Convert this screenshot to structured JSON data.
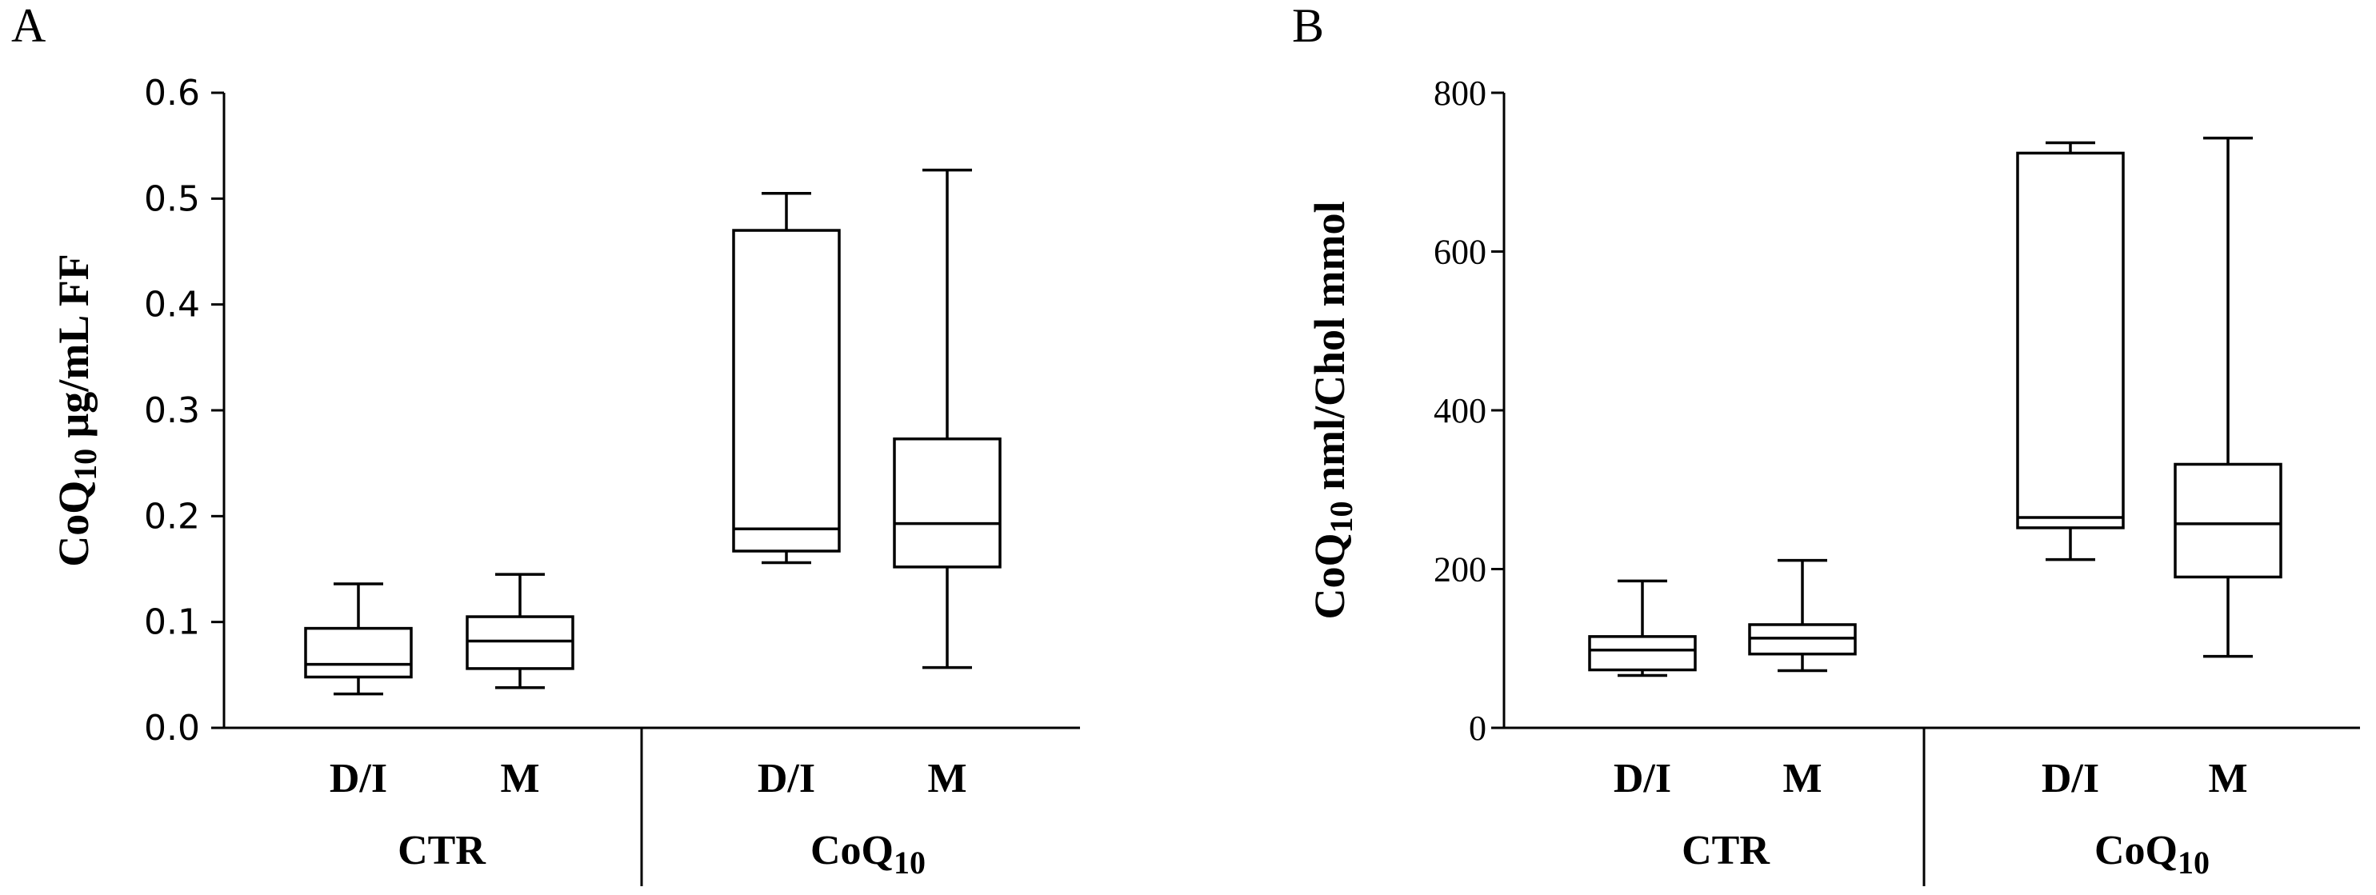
{
  "chart_data": [
    {
      "type": "boxplot",
      "panel_label": "A",
      "ylabel_main": "CoQ",
      "ylabel_sub": "10",
      "ylabel_rest": " μg/mL FF",
      "ylim": [
        0,
        0.6
      ],
      "yticks": [
        "0.0",
        "0.1",
        "0.2",
        "0.3",
        "0.4",
        "0.5",
        "0.6"
      ],
      "ytick_values": [
        0,
        0.1,
        0.2,
        0.3,
        0.4,
        0.5,
        0.6
      ],
      "categories": [
        "D/I",
        "M",
        "D/I",
        "M"
      ],
      "groups": [
        {
          "main": "CTR",
          "sub": ""
        },
        {
          "main": "CoQ",
          "sub": "10"
        }
      ],
      "boxes": [
        {
          "group": "CTR",
          "name": "D/I",
          "min": 0.032,
          "q1": 0.048,
          "median": 0.06,
          "q3": 0.094,
          "max": 0.136
        },
        {
          "group": "CTR",
          "name": "M",
          "min": 0.038,
          "q1": 0.056,
          "median": 0.082,
          "q3": 0.105,
          "max": 0.145
        },
        {
          "group": "CoQ10",
          "name": "D/I",
          "min": 0.156,
          "q1": 0.167,
          "median": 0.188,
          "q3": 0.47,
          "max": 0.505
        },
        {
          "group": "CoQ10",
          "name": "M",
          "min": 0.057,
          "q1": 0.152,
          "median": 0.193,
          "q3": 0.273,
          "max": 0.527
        }
      ]
    },
    {
      "type": "boxplot",
      "panel_label": "B",
      "ylabel_main": "CoQ",
      "ylabel_sub": "10",
      "ylabel_rest": " nml/Chol mmol",
      "ylim": [
        0,
        800
      ],
      "yticks": [
        "0",
        "200",
        "400",
        "600",
        "800"
      ],
      "ytick_values": [
        0,
        200,
        400,
        600,
        800
      ],
      "categories": [
        "D/I",
        "M",
        "D/I",
        "M"
      ],
      "groups": [
        {
          "main": "CTR",
          "sub": ""
        },
        {
          "main": "CoQ",
          "sub": "10"
        }
      ],
      "boxes": [
        {
          "group": "CTR",
          "name": "D/I",
          "min": 66,
          "q1": 73,
          "median": 98,
          "q3": 115,
          "max": 185
        },
        {
          "group": "CTR",
          "name": "M",
          "min": 72,
          "q1": 93,
          "median": 113,
          "q3": 130,
          "max": 211
        },
        {
          "group": "CoQ10",
          "name": "D/I",
          "min": 212,
          "q1": 252,
          "median": 265,
          "q3": 724,
          "max": 737
        },
        {
          "group": "CoQ10",
          "name": "M",
          "min": 90,
          "q1": 190,
          "median": 257,
          "q3": 332,
          "max": 743
        }
      ]
    }
  ]
}
